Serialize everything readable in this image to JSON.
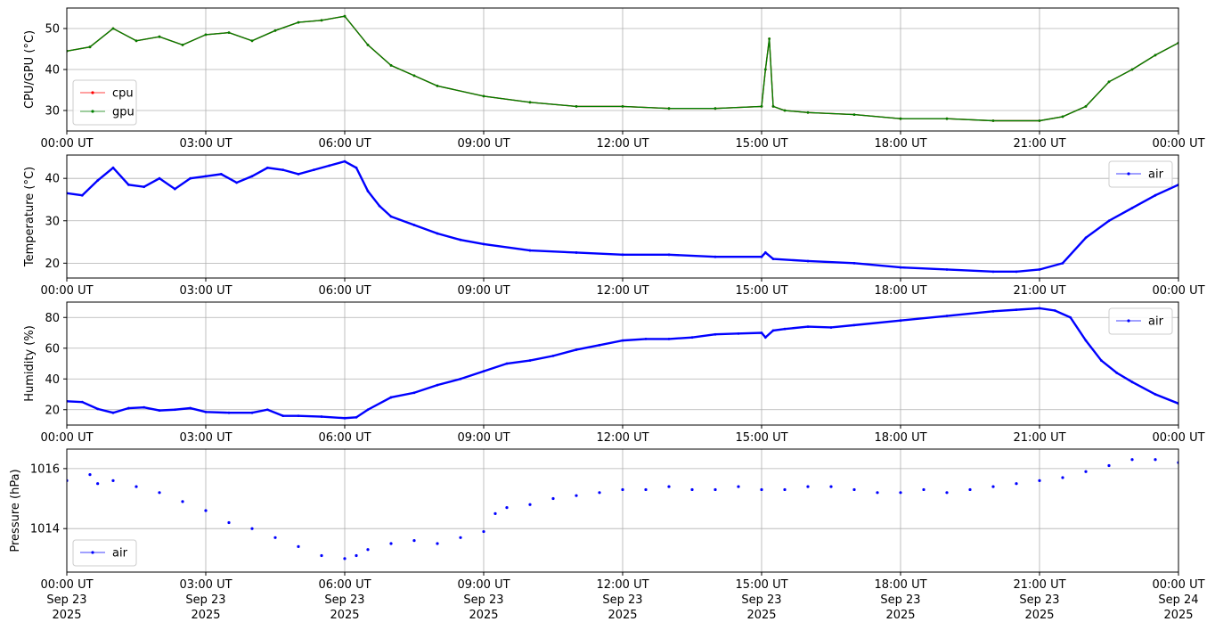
{
  "chart_data": [
    {
      "type": "line",
      "ylabel": "CPU/GPU (°C)",
      "xlim": [
        "2025-09-23T00:00",
        "2025-09-24T00:00"
      ],
      "ylim": [
        25,
        55
      ],
      "yticks": [
        30,
        40,
        50
      ],
      "grid": true,
      "legend_position": "lower-left",
      "series": [
        {
          "name": "cpu",
          "color": "#ff0000",
          "marker": "dot",
          "x": [
            "00:00",
            "00:30",
            "01:00",
            "01:30",
            "02:00",
            "02:30",
            "03:00",
            "03:30",
            "04:00",
            "04:30",
            "05:00",
            "05:30",
            "06:00",
            "06:30",
            "07:00",
            "07:30",
            "08:00",
            "09:00",
            "10:00",
            "11:00",
            "12:00",
            "13:00",
            "14:00",
            "15:00",
            "15:05",
            "15:10",
            "15:15",
            "15:30",
            "16:00",
            "17:00",
            "18:00",
            "19:00",
            "20:00",
            "21:00",
            "21:30",
            "22:00",
            "22:30",
            "23:00",
            "23:30",
            "24:00"
          ],
          "y": [
            44.5,
            45.5,
            50.0,
            47.0,
            48.0,
            46.0,
            48.5,
            49.0,
            47.0,
            49.5,
            51.5,
            52.0,
            53.0,
            46.0,
            41.0,
            38.5,
            36.0,
            33.5,
            32.0,
            31.0,
            31.0,
            30.5,
            30.5,
            31.0,
            40.0,
            47.5,
            31.0,
            30.0,
            29.5,
            29.0,
            28.0,
            28.0,
            27.5,
            27.5,
            28.5,
            31.0,
            37.0,
            40.0,
            43.5,
            46.5
          ]
        },
        {
          "name": "gpu",
          "color": "#008000",
          "marker": "dot",
          "x": [
            "00:00",
            "00:30",
            "01:00",
            "01:30",
            "02:00",
            "02:30",
            "03:00",
            "03:30",
            "04:00",
            "04:30",
            "05:00",
            "05:30",
            "06:00",
            "06:30",
            "07:00",
            "07:30",
            "08:00",
            "09:00",
            "10:00",
            "11:00",
            "12:00",
            "13:00",
            "14:00",
            "15:00",
            "15:05",
            "15:10",
            "15:15",
            "15:30",
            "16:00",
            "17:00",
            "18:00",
            "19:00",
            "20:00",
            "21:00",
            "21:30",
            "22:00",
            "22:30",
            "23:00",
            "23:30",
            "24:00"
          ],
          "y": [
            44.5,
            45.5,
            50.0,
            47.0,
            48.0,
            46.0,
            48.5,
            49.0,
            47.0,
            49.5,
            51.5,
            52.0,
            53.0,
            46.0,
            41.0,
            38.5,
            36.0,
            33.5,
            32.0,
            31.0,
            31.0,
            30.5,
            30.5,
            31.0,
            40.0,
            47.5,
            31.0,
            30.0,
            29.5,
            29.0,
            28.0,
            28.0,
            27.5,
            27.5,
            28.5,
            31.0,
            37.0,
            40.0,
            43.5,
            46.5
          ]
        }
      ]
    },
    {
      "type": "line",
      "ylabel": "Temperature (°C)",
      "xlim": [
        "2025-09-23T00:00",
        "2025-09-24T00:00"
      ],
      "ylim": [
        16.5,
        45.5
      ],
      "yticks": [
        20,
        30,
        40
      ],
      "grid": true,
      "legend_position": "upper-right",
      "series": [
        {
          "name": "air",
          "color": "#0000ff",
          "marker": "dot",
          "x": [
            "00:00",
            "00:20",
            "00:40",
            "01:00",
            "01:20",
            "01:40",
            "02:00",
            "02:20",
            "02:40",
            "03:00",
            "03:20",
            "03:40",
            "04:00",
            "04:20",
            "04:40",
            "05:00",
            "05:20",
            "05:40",
            "06:00",
            "06:15",
            "06:30",
            "06:45",
            "07:00",
            "07:30",
            "08:00",
            "08:30",
            "09:00",
            "10:00",
            "11:00",
            "12:00",
            "13:00",
            "14:00",
            "15:00",
            "15:05",
            "15:15",
            "16:00",
            "17:00",
            "18:00",
            "19:00",
            "20:00",
            "20:30",
            "21:00",
            "21:30",
            "22:00",
            "22:30",
            "23:00",
            "23:30",
            "24:00"
          ],
          "y": [
            36.5,
            36.0,
            39.5,
            42.5,
            38.5,
            38.0,
            40.0,
            37.5,
            40.0,
            40.5,
            41.0,
            39.0,
            40.5,
            42.5,
            42.0,
            41.0,
            42.0,
            43.0,
            44.0,
            42.5,
            37.0,
            33.5,
            31.0,
            29.0,
            27.0,
            25.5,
            24.5,
            23.0,
            22.5,
            22.0,
            22.0,
            21.5,
            21.5,
            22.5,
            21.0,
            20.5,
            20.0,
            19.0,
            18.5,
            18.0,
            18.0,
            18.5,
            20.0,
            26.0,
            30.0,
            33.0,
            36.0,
            38.5
          ]
        }
      ]
    },
    {
      "type": "line",
      "ylabel": "Humidity (%)",
      "xlim": [
        "2025-09-23T00:00",
        "2025-09-24T00:00"
      ],
      "ylim": [
        10,
        90
      ],
      "yticks": [
        20,
        40,
        60,
        80
      ],
      "grid": true,
      "legend_position": "upper-right",
      "series": [
        {
          "name": "air",
          "color": "#0000ff",
          "marker": "dot",
          "x": [
            "00:00",
            "00:20",
            "00:40",
            "01:00",
            "01:20",
            "01:40",
            "02:00",
            "02:20",
            "02:40",
            "03:00",
            "03:30",
            "04:00",
            "04:20",
            "04:40",
            "05:00",
            "05:30",
            "06:00",
            "06:15",
            "06:30",
            "07:00",
            "07:30",
            "08:00",
            "08:30",
            "09:00",
            "09:30",
            "10:00",
            "10:30",
            "11:00",
            "11:30",
            "12:00",
            "12:30",
            "13:00",
            "13:30",
            "14:00",
            "14:30",
            "15:00",
            "15:05",
            "15:15",
            "15:30",
            "16:00",
            "16:30",
            "17:00",
            "18:00",
            "19:00",
            "20:00",
            "20:30",
            "21:00",
            "21:20",
            "21:40",
            "22:00",
            "22:20",
            "22:40",
            "23:00",
            "23:30",
            "24:00"
          ],
          "y": [
            25.5,
            25.0,
            20.5,
            18.0,
            21.0,
            21.5,
            19.5,
            20.0,
            21.0,
            18.5,
            18.0,
            18.0,
            20.0,
            16.0,
            16.0,
            15.5,
            14.5,
            15.0,
            20.0,
            28.0,
            31.0,
            36.0,
            40.0,
            45.0,
            50.0,
            52.0,
            55.0,
            59.0,
            62.0,
            65.0,
            66.0,
            66.0,
            67.0,
            69.0,
            69.5,
            70.0,
            67.0,
            71.5,
            72.5,
            74.0,
            73.5,
            75.0,
            78.0,
            81.0,
            84.0,
            85.0,
            86.0,
            84.5,
            80.0,
            65.0,
            52.0,
            44.0,
            38.0,
            30.0,
            24.0
          ]
        }
      ]
    },
    {
      "type": "scatter",
      "ylabel": "Pressure (hPa)",
      "xlim": [
        "2025-09-23T00:00",
        "2025-09-24T00:00"
      ],
      "ylim": [
        1012.55,
        1016.65
      ],
      "yticks": [
        1014,
        1016
      ],
      "grid": true,
      "legend_position": "lower-left",
      "series": [
        {
          "name": "air",
          "color": "#0000ff",
          "marker": "dot",
          "x": [
            "00:00",
            "00:30",
            "00:40",
            "01:00",
            "01:30",
            "02:00",
            "02:30",
            "03:00",
            "03:30",
            "04:00",
            "04:30",
            "05:00",
            "05:30",
            "06:00",
            "06:15",
            "06:30",
            "07:00",
            "07:30",
            "08:00",
            "08:30",
            "09:00",
            "09:15",
            "09:30",
            "10:00",
            "10:30",
            "11:00",
            "11:30",
            "12:00",
            "12:30",
            "13:00",
            "13:30",
            "14:00",
            "14:30",
            "15:00",
            "15:30",
            "16:00",
            "16:30",
            "17:00",
            "17:30",
            "18:00",
            "18:30",
            "19:00",
            "19:30",
            "20:00",
            "20:30",
            "21:00",
            "21:30",
            "22:00",
            "22:30",
            "23:00",
            "23:30",
            "24:00"
          ],
          "y": [
            1015.6,
            1015.8,
            1015.5,
            1015.6,
            1015.4,
            1015.2,
            1014.9,
            1014.6,
            1014.2,
            1014.0,
            1013.7,
            1013.4,
            1013.1,
            1013.0,
            1013.1,
            1013.3,
            1013.5,
            1013.6,
            1013.5,
            1013.7,
            1013.9,
            1014.5,
            1014.7,
            1014.8,
            1015.0,
            1015.1,
            1015.2,
            1015.3,
            1015.3,
            1015.4,
            1015.3,
            1015.3,
            1015.4,
            1015.3,
            1015.3,
            1015.4,
            1015.4,
            1015.3,
            1015.2,
            1015.2,
            1015.3,
            1015.2,
            1015.3,
            1015.4,
            1015.5,
            1015.6,
            1015.7,
            1015.9,
            1016.1,
            1016.3,
            1016.3,
            1016.2
          ]
        }
      ]
    }
  ],
  "x_ticks": {
    "time_labels": [
      "00:00 UT",
      "03:00 UT",
      "06:00 UT",
      "09:00 UT",
      "12:00 UT",
      "15:00 UT",
      "18:00 UT",
      "21:00 UT",
      "00:00 UT"
    ],
    "date_labels": [
      "Sep 23",
      "Sep 23",
      "Sep 23",
      "Sep 23",
      "Sep 23",
      "Sep 23",
      "Sep 23",
      "Sep 23",
      "Sep 24"
    ],
    "year_labels": [
      "2025",
      "2025",
      "2025",
      "2025",
      "2025",
      "2025",
      "2025",
      "2025",
      "2025"
    ]
  },
  "colors": {
    "cpu": "#ff0000",
    "gpu": "#008000",
    "air": "#0000ff",
    "grid": "#b0b0b0"
  }
}
